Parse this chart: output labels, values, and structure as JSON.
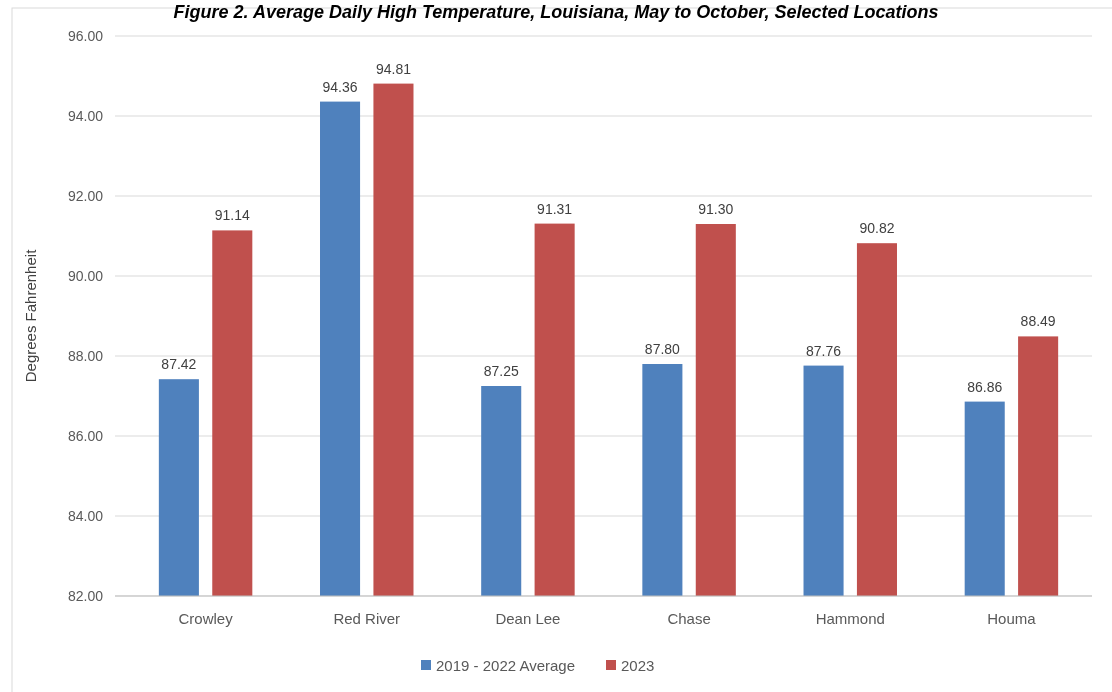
{
  "chart_data": {
    "type": "bar",
    "title": "Figure 2. Average Daily High Temperature, Louisiana, May to October, Selected Locations",
    "ylabel": "Degrees Fahrenheit",
    "categories": [
      "Crowley",
      "Red River",
      "Dean Lee",
      "Chase",
      "Hammond",
      "Houma"
    ],
    "series": [
      {
        "name": "2019 - 2022 Average",
        "color": "#4f81bd",
        "values": [
          87.42,
          94.36,
          87.25,
          87.8,
          87.76,
          86.86
        ],
        "value_labels": [
          "87.42",
          "94.36",
          "87.25",
          "87.80",
          "87.76",
          "86.86"
        ]
      },
      {
        "name": "2023",
        "color": "#c0504d",
        "values": [
          91.14,
          94.81,
          91.31,
          91.3,
          90.82,
          88.49
        ],
        "value_labels": [
          "91.14",
          "94.81",
          "91.31",
          "91.30",
          "90.82",
          "88.49"
        ]
      }
    ],
    "ylim": [
      82,
      96
    ],
    "yticks": [
      {
        "value": 82,
        "label": "82.00"
      },
      {
        "value": 84,
        "label": "84.00"
      },
      {
        "value": 86,
        "label": "86.00"
      },
      {
        "value": 88,
        "label": "88.00"
      },
      {
        "value": 90,
        "label": "90.00"
      },
      {
        "value": 92,
        "label": "92.00"
      },
      {
        "value": 94,
        "label": "94.00"
      },
      {
        "value": 96,
        "label": "96.00"
      }
    ],
    "grid": "y",
    "legend": "bottom"
  }
}
